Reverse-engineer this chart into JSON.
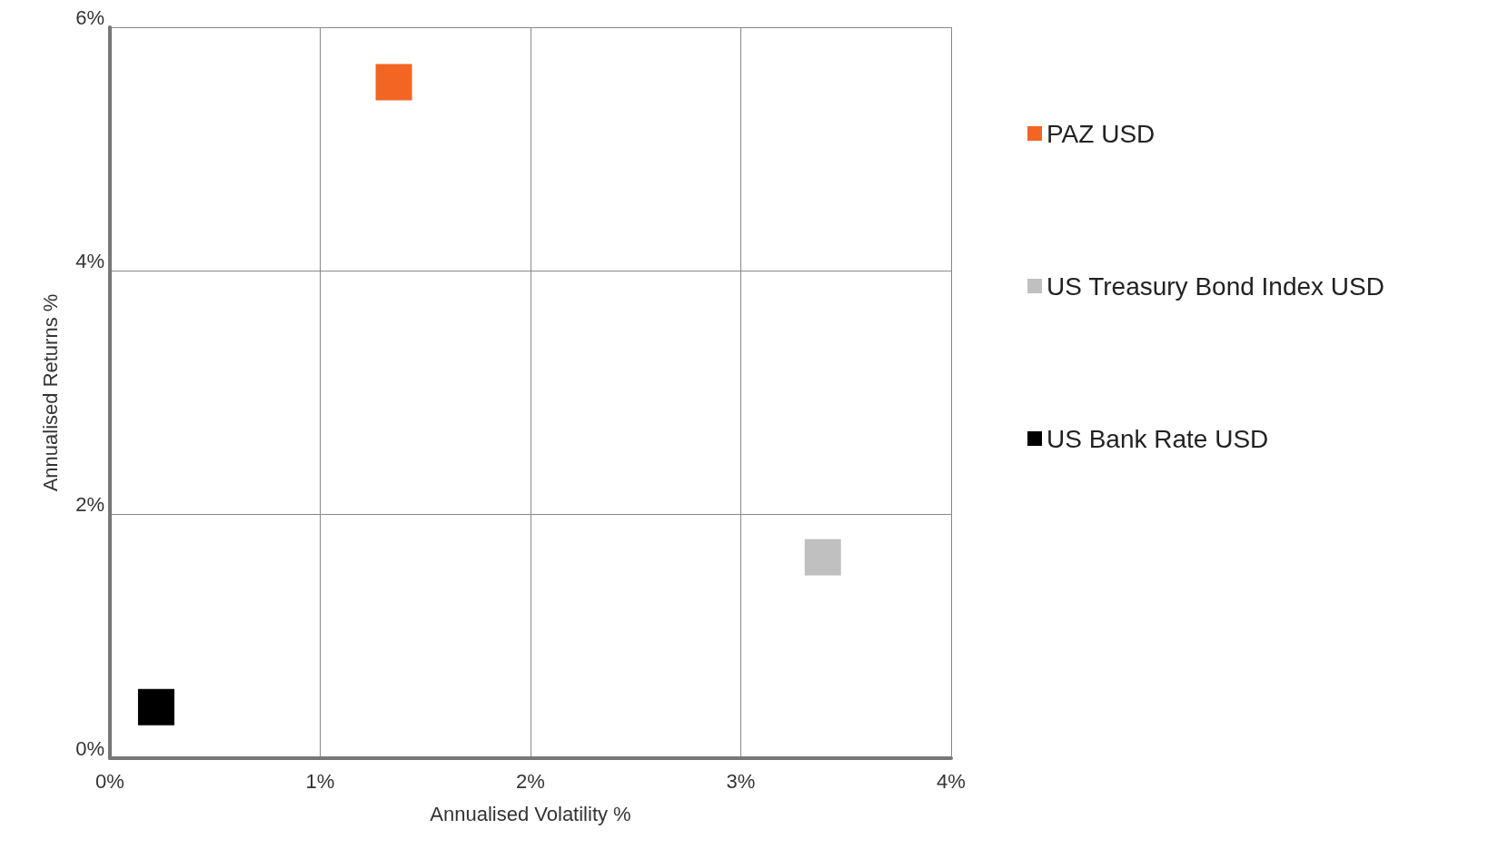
{
  "chart_data": {
    "type": "scatter",
    "xlabel": "Annualised Volatility %",
    "ylabel": "Annualised Returns %",
    "series": [
      {
        "name": "PAZ USD",
        "color": "#f26522",
        "x": [
          1.35
        ],
        "values": [
          5.55
        ]
      },
      {
        "name": "US Treasury Bond Index USD",
        "color": "#c0c0c0",
        "x": [
          3.39
        ],
        "values": [
          1.65
        ]
      },
      {
        "name": "US Bank Rate USD",
        "color": "#000000",
        "x": [
          0.22
        ],
        "values": [
          0.42
        ]
      }
    ],
    "xlim": [
      0,
      4
    ],
    "xticks": [
      {
        "value": 0,
        "label": "0%"
      },
      {
        "value": 1,
        "label": "1%"
      },
      {
        "value": 2,
        "label": "2%"
      },
      {
        "value": 3,
        "label": "3%"
      },
      {
        "value": 4,
        "label": "4%"
      }
    ],
    "ylim": [
      0,
      6
    ],
    "yticks": [
      {
        "value": 0,
        "label": "0%"
      },
      {
        "value": 2,
        "label": "2%"
      },
      {
        "value": 4,
        "label": "4%"
      },
      {
        "value": 6,
        "label": "6%"
      }
    ],
    "grid": true,
    "legend": "right",
    "marker": "square"
  }
}
